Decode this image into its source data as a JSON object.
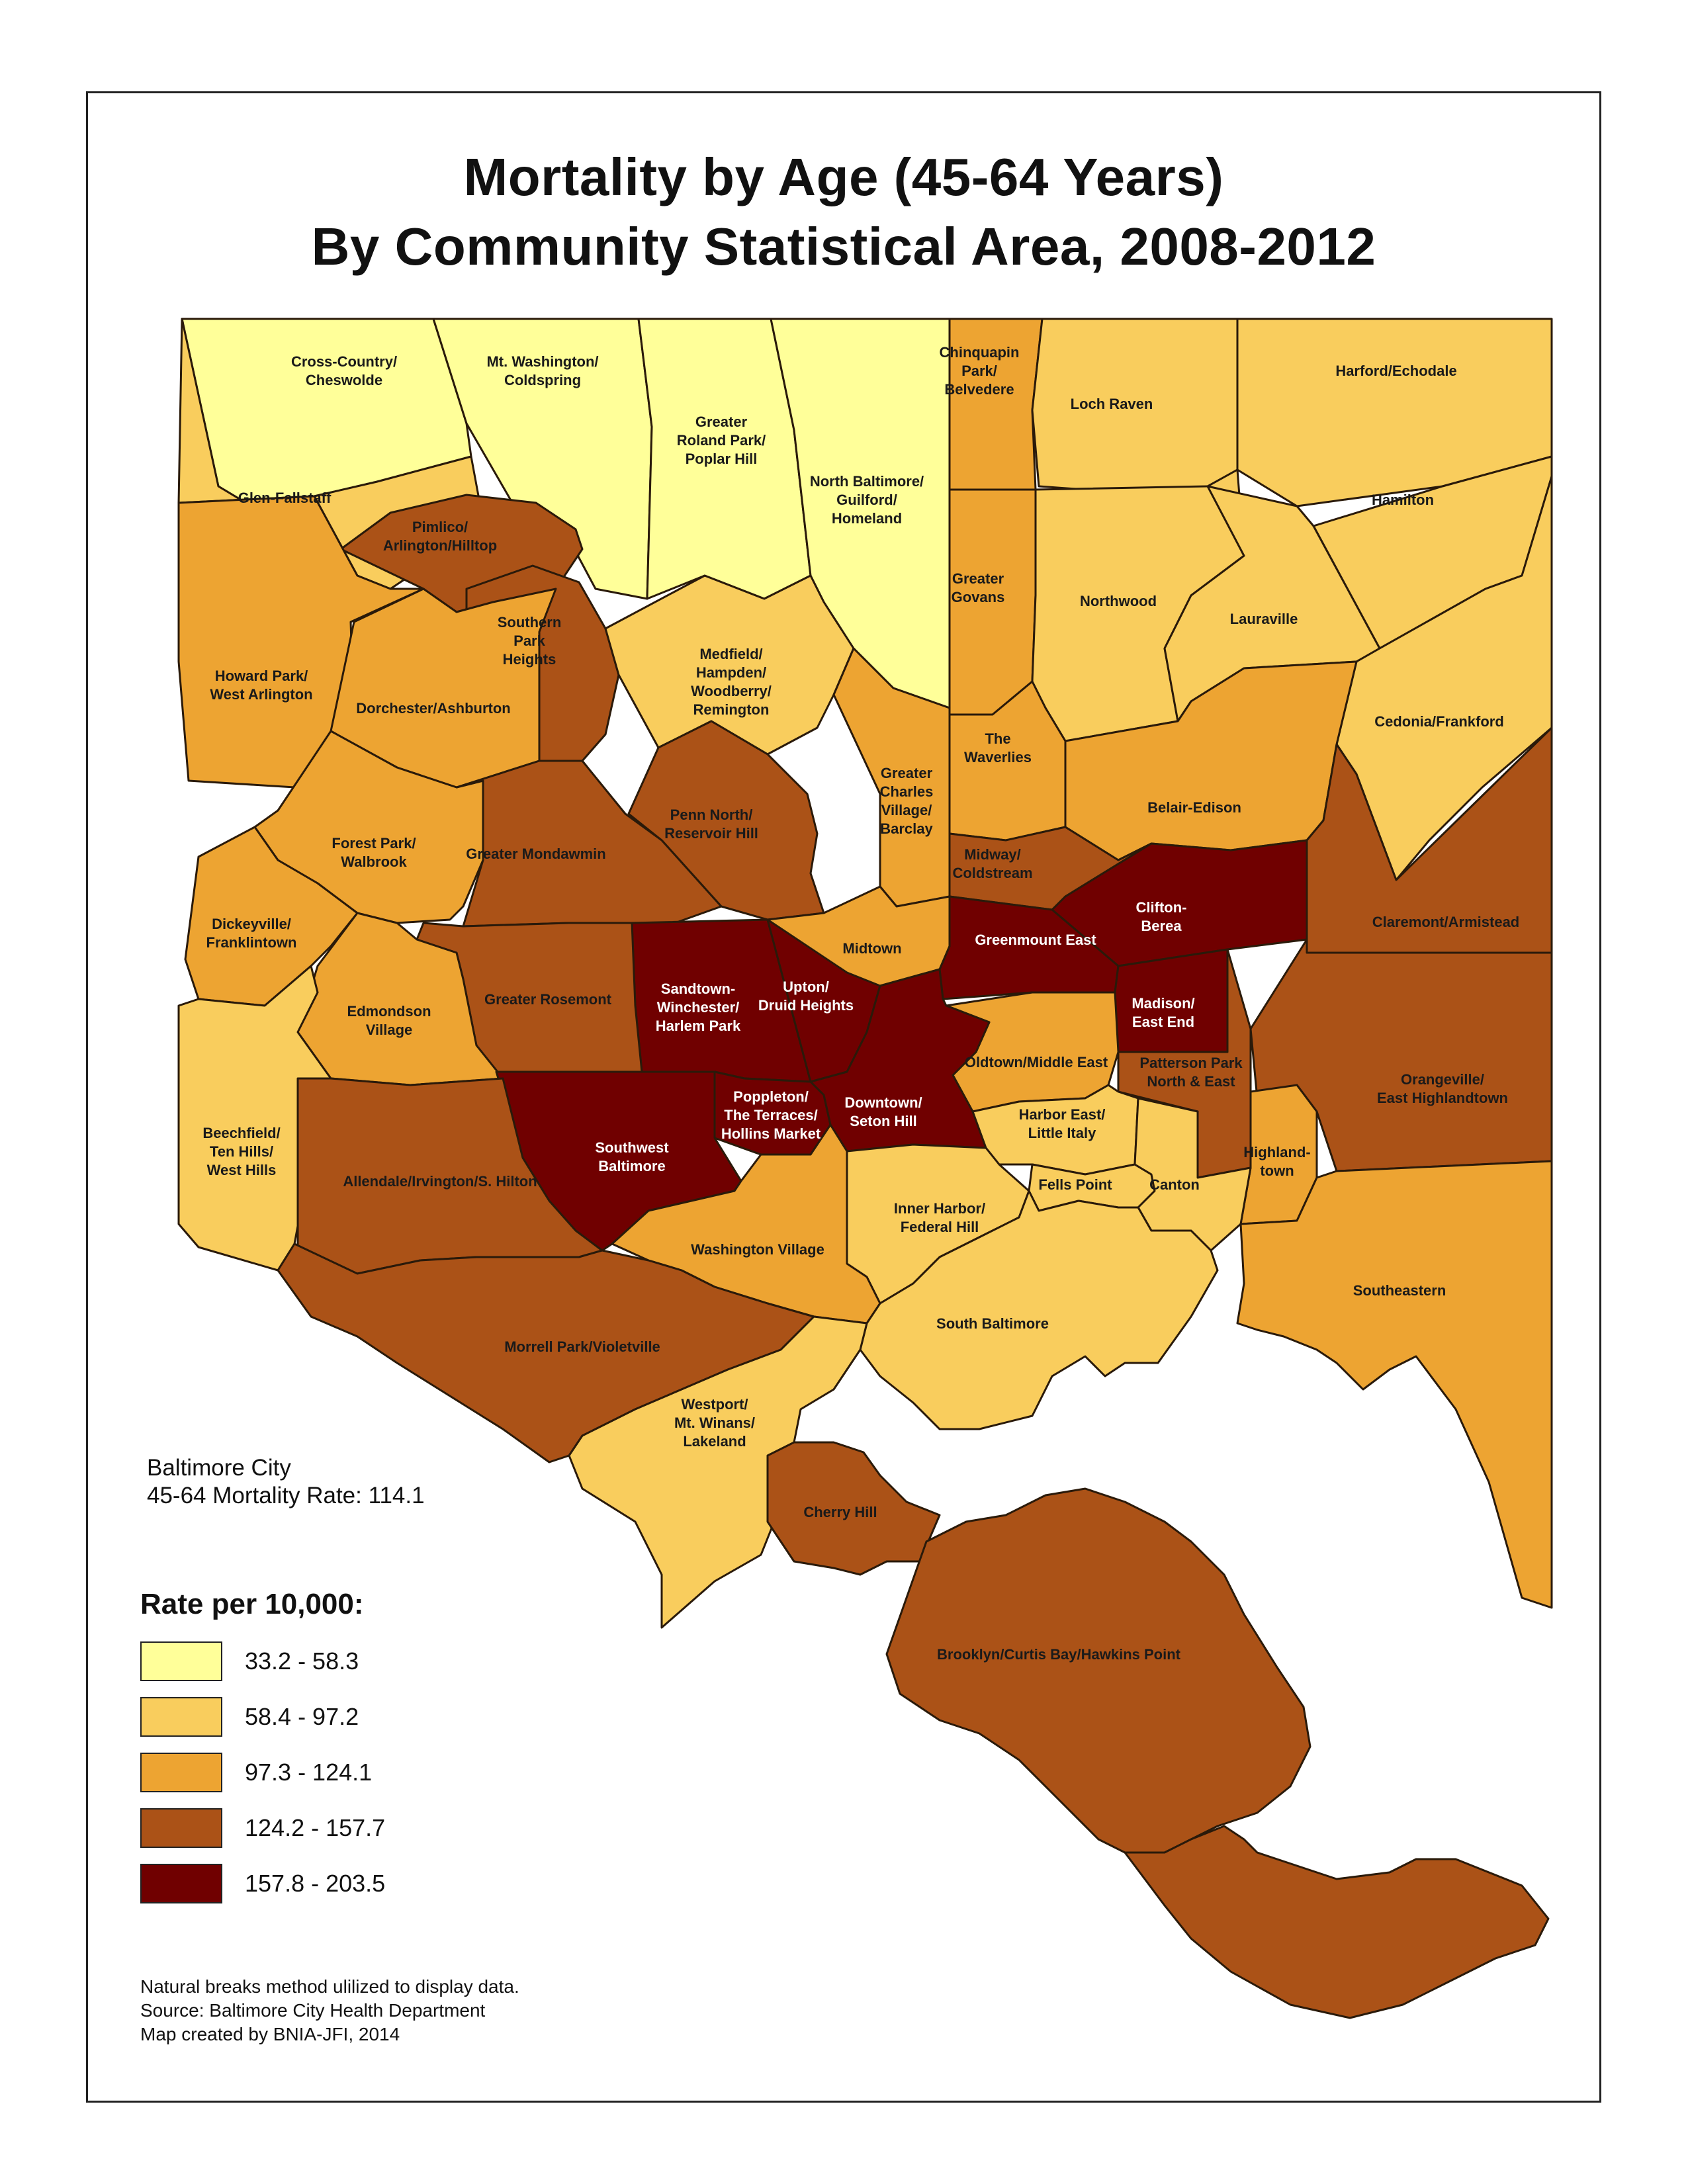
{
  "title": {
    "line1": "Mortality by Age (45-64 Years)",
    "line2": "By Community Statistical Area, 2008-2012"
  },
  "summary": {
    "line1": "Baltimore City",
    "line2": "45-64 Mortality Rate: 114.1"
  },
  "legend": {
    "title": "Rate per 10,000:",
    "classes": [
      {
        "label": "33.2 - 58.3",
        "color": "#ffff99"
      },
      {
        "label": "58.4 - 97.2",
        "color": "#f9cd5d"
      },
      {
        "label": "97.3 - 124.1",
        "color": "#eda432"
      },
      {
        "label": "124.2 - 157.7",
        "color": "#ab5217"
      },
      {
        "label": "157.8 - 203.5",
        "color": "#700000"
      }
    ]
  },
  "notes": {
    "line1": "Natural breaks method ulilized to display data.",
    "line2": "Source: Baltimore City Health Department",
    "line3": "Map created by BNIA-JFI, 2014"
  },
  "areas": [
    {
      "name": "Cross-Country/Cheswolde",
      "lines": [
        "Cross-Country/",
        "Cheswolde"
      ],
      "class": 0
    },
    {
      "name": "Mt. Washington/Coldspring",
      "lines": [
        "Mt. Washington/",
        "Coldspring"
      ],
      "class": 0
    },
    {
      "name": "Greater Roland Park/Poplar Hill",
      "lines": [
        "Greater",
        "Roland Park/",
        "Poplar Hill"
      ],
      "class": 0
    },
    {
      "name": "North Baltimore/Guilford/Homeland",
      "lines": [
        "North Baltimore/",
        "Guilford/",
        "Homeland"
      ],
      "class": 0
    },
    {
      "name": "Chinquapin Park/Belvedere",
      "lines": [
        "Chinquapin",
        "Park/",
        "Belvedere"
      ],
      "class": 2
    },
    {
      "name": "Loch Raven",
      "lines": [
        "Loch Raven"
      ],
      "class": 1
    },
    {
      "name": "Harford/Echodale",
      "lines": [
        "Harford/Echodale"
      ],
      "class": 1
    },
    {
      "name": "Hamilton",
      "lines": [
        "Hamilton"
      ],
      "class": 1
    },
    {
      "name": "Glen-Fallstaff",
      "lines": [
        "Glen-Fallstaff"
      ],
      "class": 1
    },
    {
      "name": "Pimlico/Arlington/Hilltop",
      "lines": [
        "Pimlico/",
        "Arlington/Hilltop"
      ],
      "class": 3
    },
    {
      "name": "Southern Park Heights",
      "lines": [
        "Southern",
        "Park",
        "Heights"
      ],
      "class": 3
    },
    {
      "name": "Greater Govans",
      "lines": [
        "Greater",
        "Govans"
      ],
      "class": 2
    },
    {
      "name": "Northwood",
      "lines": [
        "Northwood"
      ],
      "class": 1
    },
    {
      "name": "Lauraville",
      "lines": [
        "Lauraville"
      ],
      "class": 1
    },
    {
      "name": "Howard Park/West Arlington",
      "lines": [
        "Howard Park/",
        "West Arlington"
      ],
      "class": 2
    },
    {
      "name": "Dorchester/Ashburton",
      "lines": [
        "Dorchester/Ashburton"
      ],
      "class": 2
    },
    {
      "name": "Medfield/Hampden/Woodberry/Remington",
      "lines": [
        "Medfield/",
        "Hampden/",
        "Woodberry/",
        "Remington"
      ],
      "class": 1
    },
    {
      "name": "The Waverlies",
      "lines": [
        "The",
        "Waverlies"
      ],
      "class": 2
    },
    {
      "name": "Cedonia/Frankford",
      "lines": [
        "Cedonia/Frankford"
      ],
      "class": 1
    },
    {
      "name": "Greater Charles Village/Barclay",
      "lines": [
        "Greater",
        "Charles",
        "Village/",
        "Barclay"
      ],
      "class": 2
    },
    {
      "name": "Belair-Edison",
      "lines": [
        "Belair-Edison"
      ],
      "class": 2
    },
    {
      "name": "Penn North/Reservoir Hill",
      "lines": [
        "Penn North/",
        "Reservoir Hill"
      ],
      "class": 3
    },
    {
      "name": "Forest Park/Walbrook",
      "lines": [
        "Forest Park/",
        "Walbrook"
      ],
      "class": 2
    },
    {
      "name": "Greater Mondawmin",
      "lines": [
        "Greater Mondawmin"
      ],
      "class": 3
    },
    {
      "name": "Midway/Coldstream",
      "lines": [
        "Midway/",
        "Coldstream"
      ],
      "class": 3
    },
    {
      "name": "Dickeyville/Franklintown",
      "lines": [
        "Dickeyville/",
        "Franklintown"
      ],
      "class": 2
    },
    {
      "name": "Clifton-Berea",
      "lines": [
        "Clifton-",
        "Berea"
      ],
      "class": 4
    },
    {
      "name": "Claremont/Armistead",
      "lines": [
        "Claremont/Armistead"
      ],
      "class": 3
    },
    {
      "name": "Greenmount East",
      "lines": [
        "Greenmount East"
      ],
      "class": 4
    },
    {
      "name": "Midtown",
      "lines": [
        "Midtown"
      ],
      "class": 2
    },
    {
      "name": "Sandtown-Winchester/Harlem Park",
      "lines": [
        "Sandtown-",
        "Winchester/",
        "Harlem Park"
      ],
      "class": 4
    },
    {
      "name": "Upton/Druid Heights",
      "lines": [
        "Upton/",
        "Druid Heights"
      ],
      "class": 4
    },
    {
      "name": "Greater Rosemont",
      "lines": [
        "Greater Rosemont"
      ],
      "class": 3
    },
    {
      "name": "Edmondson Village",
      "lines": [
        "Edmondson",
        "Village"
      ],
      "class": 2
    },
    {
      "name": "Madison/East End",
      "lines": [
        "Madison/",
        "East End"
      ],
      "class": 4
    },
    {
      "name": "Oldtown/Middle East",
      "lines": [
        "Oldtown/Middle East"
      ],
      "class": 2
    },
    {
      "name": "Patterson Park North & East",
      "lines": [
        "Patterson Park",
        "North & East"
      ],
      "class": 3
    },
    {
      "name": "Orangeville/East Highlandtown",
      "lines": [
        "Orangeville/",
        "East Highlandtown"
      ],
      "class": 3
    },
    {
      "name": "Poppleton/The Terraces/Hollins Market",
      "lines": [
        "Poppleton/",
        "The Terraces/",
        "Hollins Market"
      ],
      "class": 4
    },
    {
      "name": "Downtown/Seton Hill",
      "lines": [
        "Downtown/",
        "Seton Hill"
      ],
      "class": 4
    },
    {
      "name": "Harbor East/Little Italy",
      "lines": [
        "Harbor East/",
        "Little Italy"
      ],
      "class": 1
    },
    {
      "name": "Beechfield/Ten Hills/West Hills",
      "lines": [
        "Beechfield/",
        "Ten Hills/",
        "West Hills"
      ],
      "class": 1
    },
    {
      "name": "Southwest Baltimore",
      "lines": [
        "Southwest",
        "Baltimore"
      ],
      "class": 4
    },
    {
      "name": "Highlandtown",
      "lines": [
        "Highland-",
        "town"
      ],
      "class": 2
    },
    {
      "name": "Allendale/Irvington/S. Hilton",
      "lines": [
        "Allendale/Irvington/S. Hilton"
      ],
      "class": 3
    },
    {
      "name": "Fells Point",
      "lines": [
        "Fells Point"
      ],
      "class": 1
    },
    {
      "name": "Canton",
      "lines": [
        "Canton"
      ],
      "class": 1
    },
    {
      "name": "Inner Harbor/Federal Hill",
      "lines": [
        "Inner Harbor/",
        "Federal Hill"
      ],
      "class": 1
    },
    {
      "name": "Washington Village",
      "lines": [
        "Washington Village"
      ],
      "class": 2
    },
    {
      "name": "Southeastern",
      "lines": [
        "Southeastern"
      ],
      "class": 2
    },
    {
      "name": "South Baltimore",
      "lines": [
        "South Baltimore"
      ],
      "class": 1
    },
    {
      "name": "Morrell Park/Violetville",
      "lines": [
        "Morrell Park/Violetville"
      ],
      "class": 3
    },
    {
      "name": "Westport/Mt. Winans/Lakeland",
      "lines": [
        "Westport/",
        "Mt. Winans/",
        "Lakeland"
      ],
      "class": 1
    },
    {
      "name": "Cherry Hill",
      "lines": [
        "Cherry Hill"
      ],
      "class": 3
    },
    {
      "name": "Brooklyn/Curtis Bay/Hawkins Point",
      "lines": [
        "Brooklyn/Curtis Bay/Hawkins Point"
      ],
      "class": 3
    }
  ]
}
